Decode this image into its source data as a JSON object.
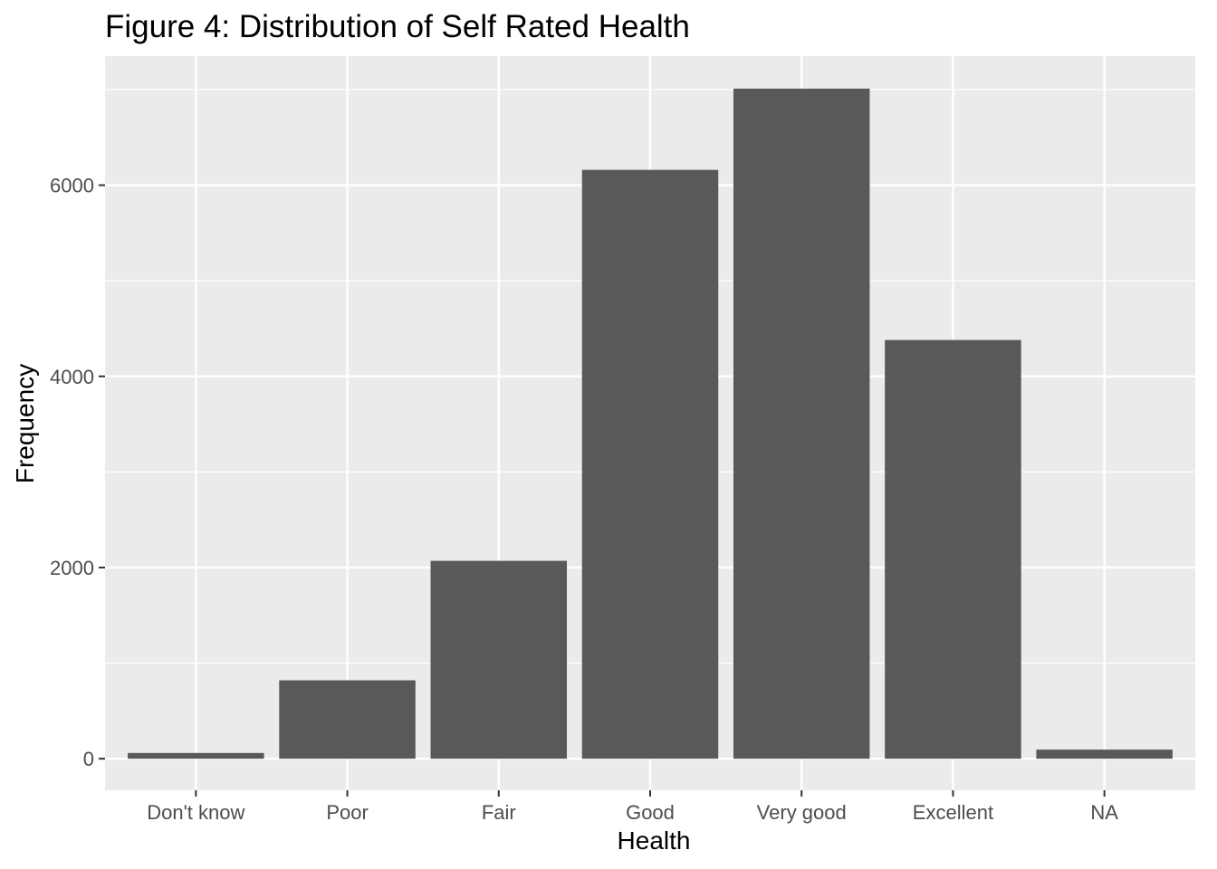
{
  "chart_data": {
    "type": "bar",
    "title": "Figure 4: Distribution of Self Rated Health",
    "xlabel": "Health",
    "ylabel": "Frequency",
    "categories": [
      "Don't know",
      "Poor",
      "Fair",
      "Good",
      "Very good",
      "Excellent",
      "NA"
    ],
    "values": [
      60,
      820,
      2070,
      6160,
      7010,
      4380,
      95
    ],
    "ylim": [
      -330,
      7350
    ],
    "yticks": [
      0,
      2000,
      4000,
      6000
    ],
    "yticks_minor": [
      1000,
      3000,
      5000,
      7000
    ],
    "grid": true,
    "legend": "none",
    "colors": {
      "panel": "#ebebeb",
      "grid": "#ffffff",
      "bar": "#595959",
      "tick": "#333333"
    }
  }
}
